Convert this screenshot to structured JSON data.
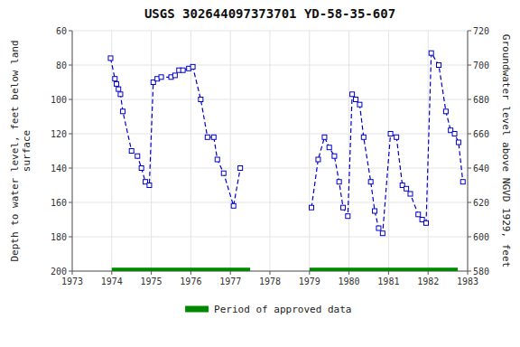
{
  "chart_data": {
    "type": "line",
    "title": "USGS 302644097373701 YD-58-35-607",
    "y_label": "Depth to water level, feet below land\nsurface",
    "y2_label": "Groundwater level above NGVD 1929, feet",
    "xlim": [
      1973,
      1983
    ],
    "xticks": [
      1973,
      1974,
      1975,
      1976,
      1977,
      1978,
      1979,
      1980,
      1981,
      1982,
      1983
    ],
    "ylim": [
      200,
      60
    ],
    "yticks": [
      60,
      80,
      100,
      120,
      140,
      160,
      180,
      200
    ],
    "y2lim": [
      580,
      720
    ],
    "y2ticks": [
      580,
      600,
      620,
      640,
      660,
      680,
      700,
      720
    ],
    "grid": true,
    "legend": "bottom",
    "series": [
      {
        "color": "#0000CC",
        "marker": "square",
        "line_style": "dashed",
        "x": [
          1973.97,
          1974.08,
          1974.12,
          1974.17,
          1974.22,
          1974.28,
          1974.5,
          1974.65,
          1974.75,
          1974.85,
          1974.95,
          1975.05,
          1975.15,
          1975.25,
          1975.5,
          1975.6,
          1975.7,
          1975.8,
          1975.95,
          1976.05,
          1976.25,
          1976.42,
          1976.58,
          1976.67,
          1976.83,
          1977.08,
          1977.25
        ],
        "values": [
          76,
          88,
          91,
          94,
          97,
          107,
          130,
          133,
          140,
          148,
          150,
          90,
          88,
          87,
          87,
          86,
          83,
          83,
          82,
          81,
          100,
          122,
          122,
          135,
          143,
          162,
          140
        ]
      },
      {
        "color": "#0000CC",
        "marker": "square",
        "line_style": "dashed",
        "x": [
          1979.05,
          1979.22,
          1979.38,
          1979.5,
          1979.63,
          1979.75,
          1979.85,
          1979.97,
          1980.08,
          1980.17,
          1980.27,
          1980.37,
          1980.55,
          1980.65,
          1980.75,
          1980.85,
          1981.05,
          1981.2,
          1981.35,
          1981.45,
          1981.55,
          1981.75,
          1981.85,
          1981.95,
          1982.08,
          1982.27,
          1982.45,
          1982.57,
          1982.67,
          1982.77,
          1982.88
        ],
        "values": [
          163,
          135,
          122,
          128,
          133,
          148,
          163,
          168,
          97,
          100,
          103,
          122,
          148,
          165,
          175,
          178,
          120,
          122,
          150,
          152,
          155,
          167,
          170,
          172,
          73,
          80,
          107,
          118,
          120,
          125,
          148
        ]
      },
      {
        "name": "Period of approved data",
        "type": "range",
        "color": "#008800",
        "x_start": [
          1974.0,
          1979.0
        ],
        "x_end": [
          1977.5,
          1982.75
        ],
        "y_bottom": 198,
        "y_top": 200
      }
    ]
  }
}
